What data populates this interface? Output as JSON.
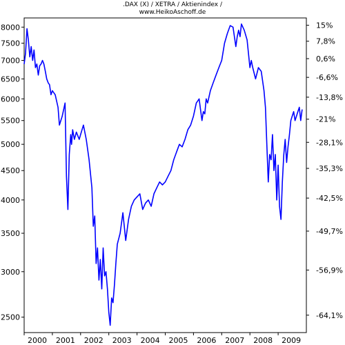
{
  "chart_data": {
    "type": "line",
    "title_line1": ".DAX (X) / XETRA / Aktienindex /",
    "title_line2": "www.HeikoAschoff.de",
    "line_color": "#0000ff",
    "y_scale": "log",
    "ylim": [
      2350,
      8300
    ],
    "xlim": [
      2000.0,
      2010.0
    ],
    "grid": false,
    "left_ticks": [
      {
        "value": 8000,
        "label": "8000"
      },
      {
        "value": 7500,
        "label": "7500"
      },
      {
        "value": 7000,
        "label": "7000"
      },
      {
        "value": 6500,
        "label": "6500"
      },
      {
        "value": 6000,
        "label": "6000"
      },
      {
        "value": 5500,
        "label": "5500"
      },
      {
        "value": 5000,
        "label": "5000"
      },
      {
        "value": 4500,
        "label": "4500"
      },
      {
        "value": 4000,
        "label": "4000"
      },
      {
        "value": 3500,
        "label": "3500"
      },
      {
        "value": 3000,
        "label": "3000"
      },
      {
        "value": 2500,
        "label": "2500"
      }
    ],
    "right_ticks": [
      {
        "value": 8060,
        "label": "15%"
      },
      {
        "value": 7560,
        "label": "7,8%"
      },
      {
        "value": 7050,
        "label": "0,6%"
      },
      {
        "value": 6540,
        "label": "-6,6%"
      },
      {
        "value": 6040,
        "label": "-13,8%"
      },
      {
        "value": 5530,
        "label": "-21%"
      },
      {
        "value": 5040,
        "label": "-28,1%"
      },
      {
        "value": 4540,
        "label": "-35,3%"
      },
      {
        "value": 4030,
        "label": "-42,5%"
      },
      {
        "value": 3530,
        "label": "-49,7%"
      },
      {
        "value": 3020,
        "label": "-56,9%"
      },
      {
        "value": 2520,
        "label": "-64,1%"
      }
    ],
    "x_ticks": [
      {
        "value": 2000,
        "label": "2000"
      },
      {
        "value": 2001,
        "label": "2001"
      },
      {
        "value": 2002,
        "label": "2002"
      },
      {
        "value": 2003,
        "label": "2003"
      },
      {
        "value": 2004,
        "label": "2004"
      },
      {
        "value": 2005,
        "label": "2005"
      },
      {
        "value": 2006,
        "label": "2006"
      },
      {
        "value": 2007,
        "label": "2007"
      },
      {
        "value": 2008,
        "label": "2008"
      },
      {
        "value": 2009,
        "label": "2009"
      }
    ],
    "series": [
      {
        "x": [
          2000.0,
          2000.05,
          2000.1,
          2000.15,
          2000.2,
          2000.25,
          2000.3,
          2000.35,
          2000.4,
          2000.45,
          2000.5,
          2000.55,
          2000.6,
          2000.65,
          2000.7,
          2000.75,
          2000.8,
          2000.85,
          2000.9,
          2000.95,
          2001.0,
          2001.1,
          2001.2,
          2001.25,
          2001.35,
          2001.45,
          2001.5,
          2001.55,
          2001.6,
          2001.65,
          2001.68,
          2001.72,
          2001.78,
          2001.85,
          2001.95,
          2002.0,
          2002.1,
          2002.2,
          2002.3,
          2002.4,
          2002.45,
          2002.5,
          2002.55,
          2002.6,
          2002.65,
          2002.7,
          2002.75,
          2002.8,
          2002.85,
          2002.9,
          2002.95,
          2003.0,
          2003.05,
          2003.1,
          2003.15,
          2003.2,
          2003.25,
          2003.3,
          2003.4,
          2003.5,
          2003.6,
          2003.7,
          2003.8,
          2003.9,
          2004.0,
          2004.1,
          2004.2,
          2004.3,
          2004.4,
          2004.5,
          2004.6,
          2004.7,
          2004.8,
          2004.9,
          2005.0,
          2005.1,
          2005.2,
          2005.3,
          2005.4,
          2005.5,
          2005.6,
          2005.7,
          2005.8,
          2005.9,
          2006.0,
          2006.1,
          2006.2,
          2006.3,
          2006.35,
          2006.4,
          2006.45,
          2006.5,
          2006.6,
          2006.7,
          2006.8,
          2006.9,
          2007.0,
          2007.1,
          2007.2,
          2007.3,
          2007.4,
          2007.5,
          2007.55,
          2007.6,
          2007.65,
          2007.7,
          2007.8,
          2007.9,
          2008.0,
          2008.05,
          2008.1,
          2008.2,
          2008.3,
          2008.4,
          2008.5,
          2008.55,
          2008.6,
          2008.65,
          2008.7,
          2008.75,
          2008.8,
          2008.85,
          2008.9,
          2008.95,
          2009.0,
          2009.05,
          2009.1,
          2009.15,
          2009.2,
          2009.25,
          2009.3,
          2009.35,
          2009.4,
          2009.45,
          2009.5,
          2009.55,
          2009.6,
          2009.65,
          2009.7,
          2009.75,
          2009.8,
          2009.85
        ],
        "values": [
          6900,
          7200,
          7950,
          7600,
          7100,
          7400,
          7000,
          7300,
          6800,
          6900,
          6600,
          6850,
          6900,
          7000,
          6900,
          6700,
          6500,
          6400,
          6350,
          6100,
          6200,
          6100,
          5800,
          5400,
          5600,
          5900,
          4400,
          3850,
          4800,
          5200,
          5000,
          5300,
          5100,
          5250,
          5100,
          5200,
          5400,
          5100,
          4700,
          4200,
          3600,
          3750,
          3100,
          3300,
          2900,
          3150,
          2800,
          3300,
          2950,
          3000,
          2800,
          2550,
          2420,
          2700,
          2650,
          2850,
          3100,
          3350,
          3500,
          3800,
          3400,
          3700,
          3900,
          4000,
          4050,
          4100,
          3850,
          3950,
          4000,
          3900,
          4100,
          4200,
          4300,
          4250,
          4300,
          4400,
          4500,
          4700,
          4850,
          5000,
          4950,
          5100,
          5300,
          5400,
          5600,
          5900,
          6000,
          5500,
          5700,
          5650,
          6000,
          5900,
          6200,
          6400,
          6600,
          6800,
          7000,
          7500,
          7800,
          8050,
          8000,
          7400,
          7700,
          7900,
          7700,
          8100,
          7900,
          7600,
          6800,
          7000,
          6800,
          6500,
          6800,
          6700,
          6200,
          5800,
          5000,
          4300,
          4800,
          4700,
          5200,
          4500,
          4800,
          4000,
          4600,
          3900,
          3700,
          4300,
          4800,
          5100,
          4650,
          4950,
          5200,
          5500,
          5600,
          5700,
          5500,
          5600,
          5700,
          5800,
          5500,
          5750
        ]
      }
    ]
  }
}
